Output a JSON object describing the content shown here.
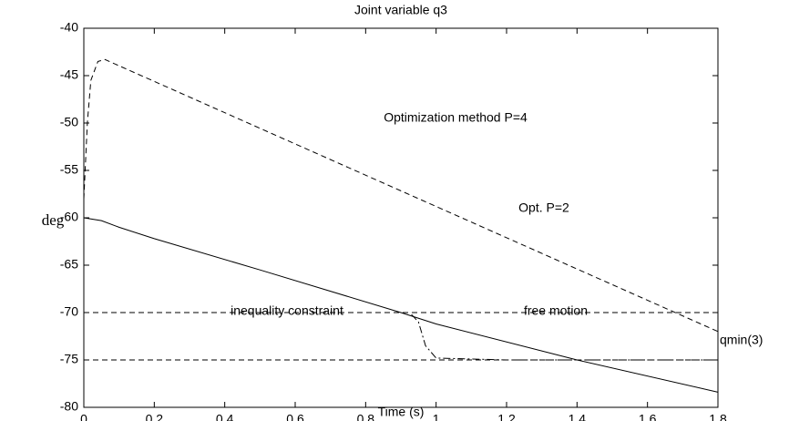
{
  "chart_data": {
    "type": "line",
    "title": "Joint variable q3",
    "x_label": "Time (s)",
    "y_label": "deg",
    "xlim": [
      0,
      1.8
    ],
    "ylim": [
      -80,
      -40
    ],
    "xticks": [
      0,
      0.2,
      0.4,
      0.6,
      0.8,
      1,
      1.2,
      1.4,
      1.6,
      1.8
    ],
    "yticks": [
      -40,
      -45,
      -50,
      -55,
      -60,
      -65,
      -70,
      -75,
      -80
    ],
    "grid": false,
    "color": "#000000",
    "series": [
      {
        "style": "solid",
        "x": [
          0,
          0.05,
          0.1,
          0.2,
          0.5,
          0.9,
          1.0,
          1.4,
          1.8
        ],
        "values": [
          -60,
          -60.3,
          -61,
          -62.2,
          -65.5,
          -70,
          -71.2,
          -75,
          -78.4
        ]
      },
      {
        "style": "dashed",
        "x": [
          0,
          0.01,
          0.02,
          0.04,
          0.06,
          1.8
        ],
        "values": [
          -58,
          -50,
          -45.5,
          -43.5,
          -43.3,
          -72
        ]
      },
      {
        "style": "dashdot",
        "x": [
          0.93,
          0.95,
          0.97,
          1.0,
          1.2,
          1.8
        ],
        "values": [
          -70.2,
          -71,
          -73.5,
          -74.8,
          -75,
          -75
        ]
      },
      {
        "style": "dashed",
        "x": [
          0,
          1.8
        ],
        "values": [
          -70,
          -70
        ]
      },
      {
        "style": "dashed",
        "x": [
          0,
          1.8
        ],
        "values": [
          -75,
          -75
        ]
      }
    ],
    "annotations": [
      "Optimization method P=4",
      "Opt. P=2",
      "inequality constraint",
      "free motion",
      "qmin(3)"
    ]
  }
}
